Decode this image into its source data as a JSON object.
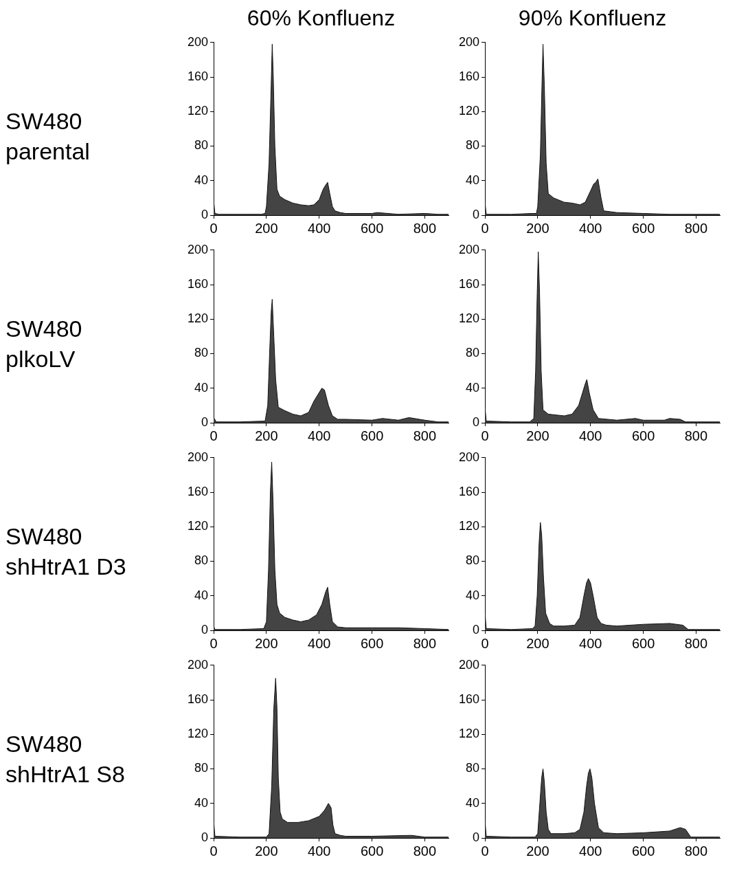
{
  "chart_data": [
    {
      "type": "area",
      "title": "60% Konfluenz",
      "ylabel": "SW480\nparental",
      "color": "#444444",
      "xlim": [
        0,
        890
      ],
      "ylim": [
        0,
        200
      ],
      "xticks": [
        0,
        200,
        400,
        600,
        800
      ],
      "yticks": [
        0,
        40,
        80,
        120,
        160,
        200
      ],
      "x": [
        0,
        5,
        20,
        100,
        180,
        195,
        200,
        210,
        218,
        222,
        226,
        232,
        240,
        250,
        270,
        300,
        330,
        360,
        380,
        400,
        415,
        425,
        432,
        440,
        450,
        460,
        480,
        500,
        600,
        620,
        700,
        800,
        850,
        890
      ],
      "values": [
        17,
        2,
        1,
        1,
        1,
        2,
        10,
        60,
        150,
        198,
        160,
        80,
        30,
        22,
        18,
        14,
        12,
        11,
        12,
        18,
        30,
        35,
        38,
        25,
        10,
        5,
        3,
        2,
        2,
        3,
        1,
        2,
        1,
        1
      ]
    },
    {
      "type": "area",
      "title": "90% Konfluenz",
      "color": "#444444",
      "xlim": [
        0,
        890
      ],
      "ylim": [
        0,
        200
      ],
      "xticks": [
        0,
        200,
        400,
        600,
        800
      ],
      "yticks": [
        0,
        40,
        80,
        120,
        160,
        200
      ],
      "x": [
        0,
        5,
        100,
        180,
        195,
        200,
        210,
        216,
        220,
        225,
        232,
        240,
        260,
        300,
        330,
        360,
        380,
        400,
        412,
        420,
        428,
        440,
        450,
        500,
        600,
        700,
        800,
        890
      ],
      "values": [
        15,
        1,
        1,
        2,
        2,
        10,
        70,
        150,
        198,
        150,
        60,
        25,
        20,
        15,
        14,
        12,
        15,
        28,
        36,
        38,
        42,
        20,
        5,
        3,
        2,
        1,
        1,
        1
      ]
    },
    {
      "type": "area",
      "ylabel": "SW480\nplkoLV",
      "color": "#444444",
      "xlim": [
        0,
        890
      ],
      "ylim": [
        0,
        200
      ],
      "xticks": [
        0,
        200,
        400,
        600,
        800
      ],
      "yticks": [
        0,
        40,
        80,
        120,
        160,
        200
      ],
      "x": [
        0,
        10,
        100,
        195,
        205,
        212,
        218,
        222,
        228,
        235,
        245,
        270,
        300,
        330,
        360,
        380,
        400,
        410,
        420,
        435,
        450,
        470,
        500,
        600,
        640,
        700,
        740,
        800,
        850,
        890
      ],
      "values": [
        6,
        1,
        1,
        2,
        20,
        80,
        128,
        143,
        100,
        50,
        18,
        14,
        10,
        8,
        12,
        25,
        35,
        40,
        38,
        20,
        8,
        4,
        4,
        3,
        5,
        3,
        6,
        3,
        1,
        1
      ]
    },
    {
      "type": "area",
      "color": "#444444",
      "xlim": [
        0,
        890
      ],
      "ylim": [
        0,
        200
      ],
      "xticks": [
        0,
        200,
        400,
        600,
        800
      ],
      "yticks": [
        0,
        40,
        80,
        120,
        160,
        200
      ],
      "x": [
        0,
        5,
        100,
        170,
        185,
        192,
        198,
        202,
        207,
        213,
        220,
        240,
        300,
        330,
        355,
        370,
        380,
        386,
        395,
        410,
        430,
        500,
        570,
        600,
        680,
        700,
        740,
        760,
        890
      ],
      "values": [
        18,
        2,
        1,
        1,
        5,
        60,
        150,
        198,
        150,
        60,
        15,
        10,
        8,
        10,
        20,
        35,
        45,
        50,
        35,
        15,
        5,
        3,
        5,
        3,
        3,
        5,
        4,
        1,
        1
      ]
    },
    {
      "type": "area",
      "ylabel": "SW480\nshHtrA1 D3",
      "color": "#444444",
      "xlim": [
        0,
        890
      ],
      "ylim": [
        0,
        200
      ],
      "xticks": [
        0,
        200,
        400,
        600,
        800
      ],
      "yticks": [
        0,
        40,
        80,
        120,
        160,
        200
      ],
      "x": [
        0,
        5,
        100,
        190,
        200,
        208,
        215,
        220,
        225,
        232,
        240,
        250,
        270,
        300,
        330,
        360,
        390,
        410,
        425,
        432,
        440,
        450,
        470,
        500,
        600,
        700,
        800,
        890
      ],
      "values": [
        5,
        1,
        1,
        2,
        10,
        70,
        160,
        195,
        150,
        70,
        30,
        20,
        15,
        12,
        10,
        12,
        18,
        30,
        45,
        50,
        30,
        10,
        4,
        3,
        3,
        3,
        2,
        1
      ]
    },
    {
      "type": "area",
      "color": "#444444",
      "xlim": [
        0,
        890
      ],
      "ylim": [
        0,
        200
      ],
      "xticks": [
        0,
        200,
        400,
        600,
        800
      ],
      "yticks": [
        0,
        40,
        80,
        120,
        160,
        200
      ],
      "x": [
        0,
        5,
        100,
        180,
        190,
        198,
        205,
        210,
        215,
        222,
        230,
        245,
        260,
        300,
        340,
        360,
        375,
        385,
        392,
        400,
        410,
        425,
        440,
        460,
        500,
        600,
        700,
        750,
        770,
        890
      ],
      "values": [
        20,
        2,
        1,
        2,
        5,
        40,
        100,
        125,
        110,
        60,
        20,
        8,
        5,
        5,
        6,
        15,
        40,
        55,
        60,
        55,
        40,
        15,
        8,
        6,
        5,
        7,
        8,
        6,
        1,
        1
      ]
    },
    {
      "type": "area",
      "ylabel": "SW480\nshHtrA1 S8",
      "color": "#444444",
      "xlim": [
        0,
        890
      ],
      "ylim": [
        0,
        200
      ],
      "xticks": [
        0,
        200,
        400,
        600,
        800
      ],
      "yticks": [
        0,
        40,
        80,
        120,
        160,
        200
      ],
      "x": [
        0,
        5,
        100,
        200,
        210,
        220,
        228,
        235,
        240,
        245,
        252,
        260,
        280,
        320,
        360,
        400,
        420,
        435,
        445,
        452,
        460,
        480,
        500,
        600,
        750,
        800,
        890
      ],
      "values": [
        20,
        2,
        1,
        1,
        5,
        60,
        150,
        185,
        150,
        70,
        30,
        22,
        18,
        18,
        20,
        25,
        32,
        40,
        35,
        15,
        5,
        3,
        2,
        2,
        3,
        1,
        1
      ]
    },
    {
      "type": "area",
      "color": "#444444",
      "xlim": [
        0,
        890
      ],
      "ylim": [
        0,
        200
      ],
      "xticks": [
        0,
        200,
        400,
        600,
        800
      ],
      "yticks": [
        0,
        40,
        80,
        120,
        160,
        200
      ],
      "x": [
        0,
        5,
        100,
        190,
        200,
        208,
        215,
        220,
        225,
        232,
        240,
        250,
        300,
        340,
        360,
        375,
        385,
        392,
        398,
        405,
        415,
        430,
        450,
        500,
        600,
        700,
        740,
        760,
        780,
        890
      ],
      "values": [
        20,
        2,
        1,
        1,
        5,
        40,
        70,
        80,
        65,
        30,
        10,
        5,
        5,
        6,
        10,
        30,
        60,
        75,
        80,
        70,
        40,
        12,
        6,
        5,
        6,
        8,
        12,
        10,
        1,
        1
      ]
    }
  ]
}
